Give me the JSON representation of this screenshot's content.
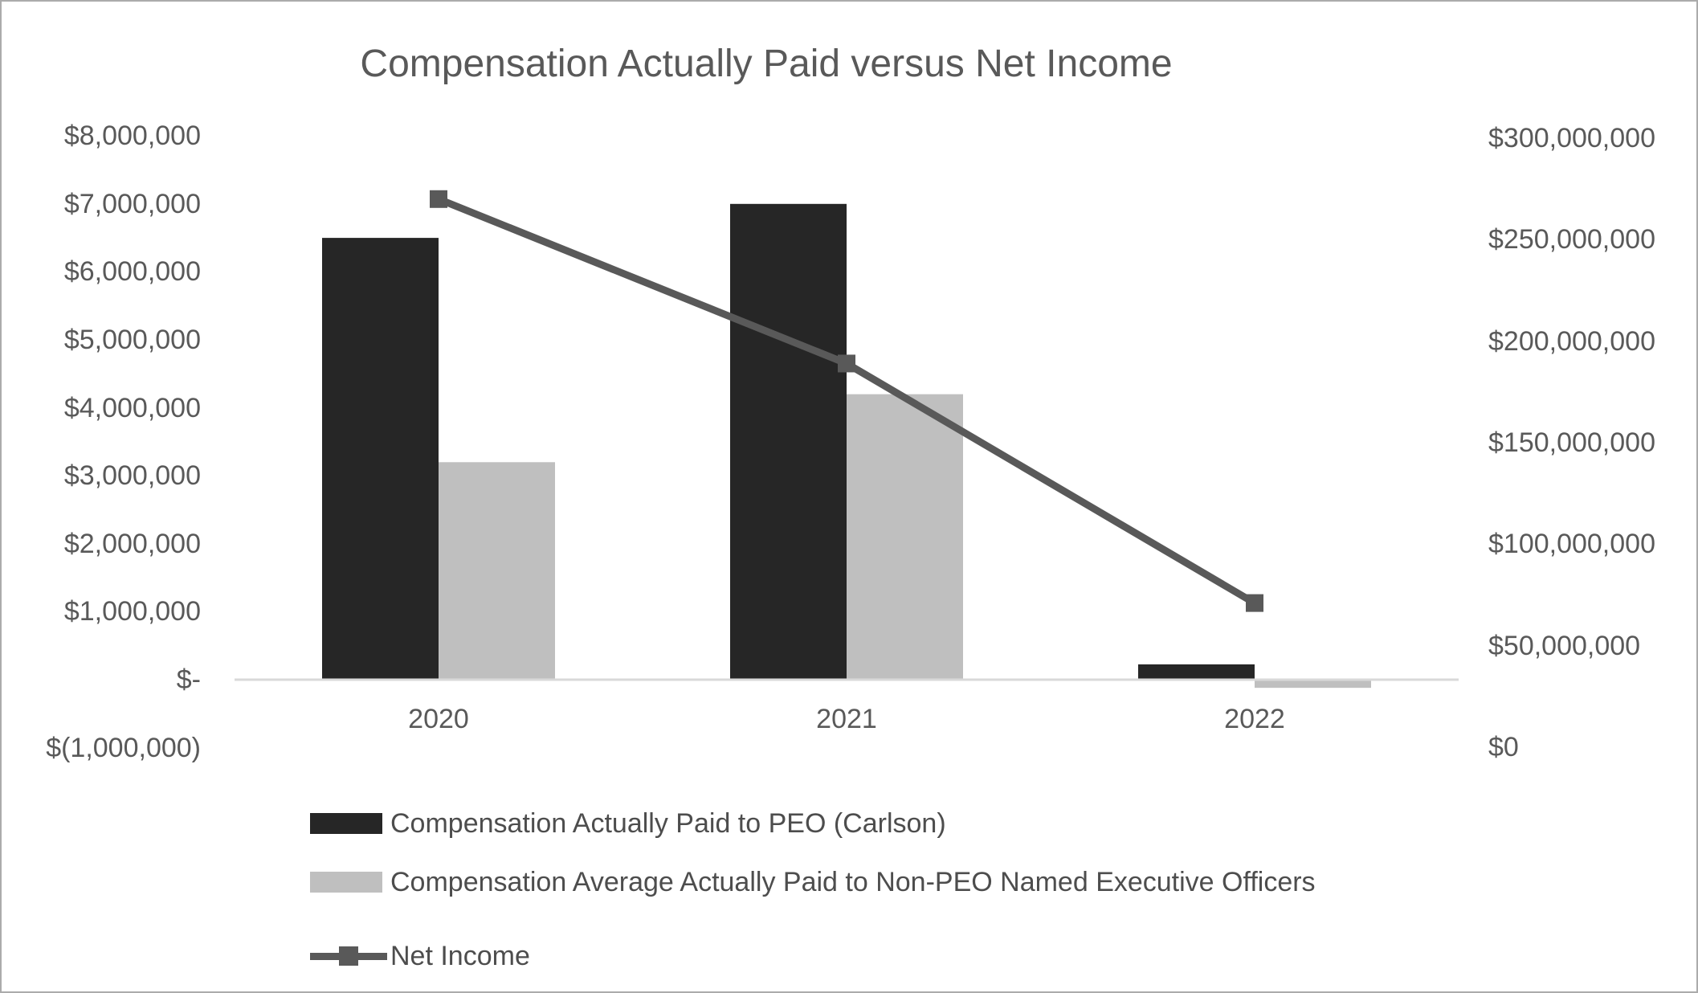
{
  "title": "Compensation Actually Paid versus Net Income",
  "chart_data": {
    "type": "combo",
    "categories": [
      "2020",
      "2021",
      "2022"
    ],
    "series": [
      {
        "name": "Compensation Actually Paid to PEO (Carlson)",
        "type": "bar",
        "axis": "left",
        "color": "#262626",
        "values": [
          6500000,
          7000000,
          225000
        ]
      },
      {
        "name": "Compensation Average Actually Paid to Non-PEO Named Executive Officers",
        "type": "bar",
        "axis": "left",
        "color": "#bfbfbf",
        "values": [
          3200000,
          4200000,
          -120000
        ]
      },
      {
        "name": "Net Income",
        "type": "line",
        "axis": "right",
        "color": "#595959",
        "marker": "square",
        "values": [
          270000000,
          189000000,
          71000000
        ]
      }
    ],
    "left_axis": {
      "range": [
        -1000000,
        8000000
      ],
      "ticks": [
        {
          "label": "$8,000,000",
          "value": 8000000
        },
        {
          "label": "$7,000,000",
          "value": 7000000
        },
        {
          "label": "$6,000,000",
          "value": 6000000
        },
        {
          "label": "$5,000,000",
          "value": 5000000
        },
        {
          "label": "$4,000,000",
          "value": 4000000
        },
        {
          "label": "$3,000,000",
          "value": 3000000
        },
        {
          "label": "$2,000,000",
          "value": 2000000
        },
        {
          "label": "$1,000,000",
          "value": 1000000
        },
        {
          "label": "$-",
          "value": 0
        },
        {
          "label": "$(1,000,000)",
          "value": -1000000
        }
      ]
    },
    "right_axis": {
      "range": [
        0,
        300000000
      ],
      "ticks": [
        {
          "label": "$300,000,000",
          "value": 300000000
        },
        {
          "label": "$250,000,000",
          "value": 250000000
        },
        {
          "label": "$200,000,000",
          "value": 200000000
        },
        {
          "label": "$150,000,000",
          "value": 150000000
        },
        {
          "label": "$100,000,000",
          "value": 100000000
        },
        {
          "label": "$50,000,000",
          "value": 50000000
        },
        {
          "label": "$0",
          "value": 0
        }
      ]
    },
    "grid": false,
    "legend_position": "bottom-left"
  },
  "colors": {
    "background": "#ffffff",
    "border": "#ababab",
    "axis_line": "#d9d9d9",
    "title_text": "#595959",
    "axis_text": "#595959",
    "legend_text": "#4d4d4d"
  }
}
